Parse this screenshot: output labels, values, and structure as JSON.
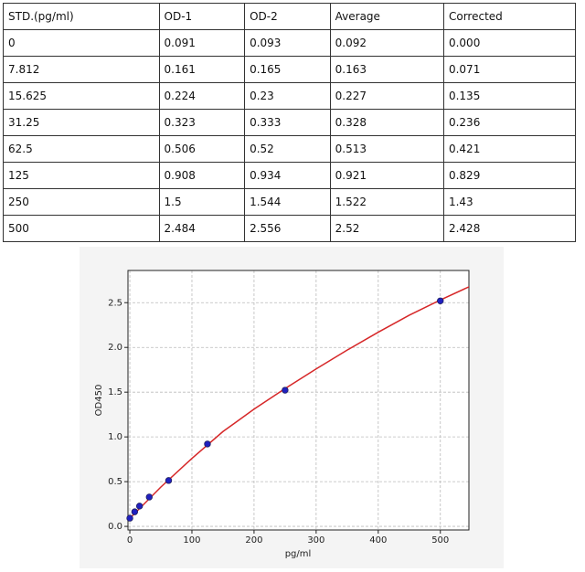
{
  "table": {
    "header": [
      "STD.(pg/ml)",
      "OD-1",
      "OD-2",
      "Average",
      "Corrected"
    ],
    "rows": [
      [
        "0",
        "0.091",
        "0.093",
        "0.092",
        "0.000"
      ],
      [
        "7.812",
        "0.161",
        "0.165",
        "0.163",
        "0.071"
      ],
      [
        "15.625",
        "0.224",
        "0.23",
        "0.227",
        "0.135"
      ],
      [
        "31.25",
        "0.323",
        "0.333",
        "0.328",
        "0.236"
      ],
      [
        "62.5",
        "0.506",
        "0.52",
        "0.513",
        "0.421"
      ],
      [
        "125",
        "0.908",
        "0.934",
        "0.921",
        "0.829"
      ],
      [
        "250",
        "1.5",
        "1.544",
        "1.522",
        "1.43"
      ],
      [
        "500",
        "2.484",
        "2.556",
        "2.52",
        "2.428"
      ]
    ]
  },
  "chart_data": {
    "type": "scatter",
    "xlabel": "pg/ml",
    "ylabel": "OD450",
    "xlim": [
      -3,
      546
    ],
    "ylim": [
      -0.04,
      2.86
    ],
    "xticks": [
      0,
      100,
      200,
      300,
      400,
      500
    ],
    "yticks": [
      {
        "value": 0,
        "label": "0.0"
      },
      {
        "value": 0.5,
        "label": "0.5"
      },
      {
        "value": 1,
        "label": "1.0"
      },
      {
        "value": 1.5,
        "label": "1.5"
      },
      {
        "value": 2,
        "label": "2.0"
      },
      {
        "value": 2.5,
        "label": "2.5"
      }
    ],
    "grid": true,
    "points": {
      "color": "#2020c0",
      "x": [
        0,
        7.812,
        15.625,
        31.25,
        62.5,
        125,
        250,
        500
      ],
      "y": [
        0.092,
        0.163,
        0.227,
        0.328,
        0.513,
        0.921,
        1.522,
        2.52
      ]
    },
    "fit": {
      "color": "#d62728",
      "x": [
        0,
        50,
        100,
        150,
        200,
        250,
        300,
        350,
        400,
        450,
        500,
        550
      ],
      "y": [
        0.09,
        0.44,
        0.76,
        1.06,
        1.31,
        1.54,
        1.76,
        1.97,
        2.17,
        2.36,
        2.53,
        2.69
      ]
    }
  }
}
